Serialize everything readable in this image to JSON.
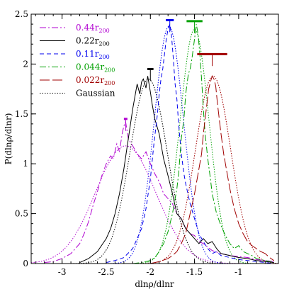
{
  "chart_data": {
    "type": "line",
    "xlabel": "dlnρ/dlnr",
    "ylabel": "P(dlnρ/dlnr)",
    "xlim": [
      -3.35,
      -0.55
    ],
    "ylim": [
      0,
      2.5
    ],
    "xticks": [
      -3,
      -2.5,
      -2,
      -1.5,
      -1
    ],
    "xtick_labels": [
      "-3",
      "-2.5",
      "-2",
      "-1.5",
      "-1"
    ],
    "yticks": [
      0,
      0.5,
      1,
      1.5,
      2,
      2.5
    ],
    "ytick_labels": [
      "0",
      "0.5",
      "1",
      "1.5",
      "2",
      "2.5"
    ],
    "grid": false,
    "legend_position": "top-left",
    "series": [
      {
        "name": "0.44r200",
        "name_main": "0.44r",
        "name_sub": "200",
        "color": "#b000d0",
        "dash": "9,3,2,3",
        "marker": {
          "x": -2.28,
          "y": 1.45,
          "halfwidth": 0.02
        },
        "x": [
          -3.2,
          -3.1,
          -3.0,
          -2.9,
          -2.8,
          -2.75,
          -2.7,
          -2.65,
          -2.6,
          -2.55,
          -2.5,
          -2.45,
          -2.42,
          -2.38,
          -2.35,
          -2.32,
          -2.3,
          -2.28,
          -2.25,
          -2.2,
          -2.15,
          -2.1,
          -2.05,
          -2.0,
          -1.95,
          -1.9,
          -1.85,
          -1.8,
          -1.75,
          -1.7,
          -1.65,
          -1.6,
          -1.55,
          -1.5,
          -1.45,
          -1.4,
          -1.3,
          -1.2,
          -1.1,
          -1.0,
          -0.9,
          -0.8,
          -0.7,
          -0.6
        ],
        "y": [
          0.01,
          0.02,
          0.05,
          0.1,
          0.2,
          0.3,
          0.42,
          0.58,
          0.72,
          0.88,
          1.0,
          1.08,
          1.05,
          1.2,
          1.12,
          1.3,
          1.38,
          1.42,
          1.25,
          1.18,
          1.1,
          1.05,
          1.12,
          1.0,
          0.9,
          0.82,
          0.7,
          0.65,
          0.6,
          0.5,
          0.45,
          0.35,
          0.3,
          0.28,
          0.22,
          0.2,
          0.13,
          0.1,
          0.08,
          0.07,
          0.06,
          0.04,
          0.03,
          0.02
        ]
      },
      {
        "name": "0.22r200",
        "name_main": "0.22r",
        "name_sub": "200",
        "color": "#000000",
        "dash": "",
        "marker": {
          "x": -2.0,
          "y": 1.95,
          "halfwidth": 0.035
        },
        "x": [
          -2.8,
          -2.7,
          -2.6,
          -2.5,
          -2.45,
          -2.4,
          -2.35,
          -2.3,
          -2.25,
          -2.2,
          -2.15,
          -2.12,
          -2.1,
          -2.08,
          -2.05,
          -2.03,
          -2.0,
          -1.98,
          -1.95,
          -1.9,
          -1.85,
          -1.8,
          -1.75,
          -1.7,
          -1.65,
          -1.6,
          -1.55,
          -1.5,
          -1.45,
          -1.4,
          -1.35,
          -1.3,
          -1.25,
          -1.2,
          -1.1,
          -1.0,
          -0.9,
          -0.8,
          -0.7,
          -0.6
        ],
        "y": [
          0.01,
          0.05,
          0.12,
          0.25,
          0.35,
          0.5,
          0.7,
          0.95,
          1.25,
          1.55,
          1.8,
          1.7,
          1.82,
          1.85,
          1.76,
          1.88,
          1.72,
          1.6,
          1.45,
          1.3,
          1.05,
          0.88,
          0.7,
          0.5,
          0.45,
          0.35,
          0.3,
          0.25,
          0.2,
          0.25,
          0.2,
          0.22,
          0.15,
          0.1,
          0.08,
          0.06,
          0.05,
          0.03,
          0.02,
          0.01
        ]
      },
      {
        "name": "0.11r200",
        "name_main": "0.11r",
        "name_sub": "200",
        "color": "#0000ee",
        "dash": "6,4",
        "marker": {
          "x": -1.78,
          "y": 2.44,
          "halfwidth": 0.045
        },
        "x": [
          -2.5,
          -2.4,
          -2.3,
          -2.2,
          -2.1,
          -2.05,
          -2.0,
          -1.96,
          -1.92,
          -1.9,
          -1.88,
          -1.86,
          -1.84,
          -1.82,
          -1.8,
          -1.78,
          -1.76,
          -1.74,
          -1.72,
          -1.7,
          -1.68,
          -1.65,
          -1.62,
          -1.6,
          -1.55,
          -1.5,
          -1.45,
          -1.4,
          -1.35,
          -1.3,
          -1.25,
          -1.2,
          -1.1,
          -1.0,
          -0.9,
          -0.8,
          -0.7,
          -0.6
        ],
        "y": [
          0.01,
          0.03,
          0.06,
          0.15,
          0.35,
          0.55,
          0.85,
          1.2,
          1.5,
          1.7,
          1.85,
          1.95,
          2.1,
          2.25,
          2.35,
          2.4,
          2.28,
          2.05,
          1.8,
          1.65,
          1.4,
          1.1,
          0.9,
          0.8,
          0.6,
          0.45,
          0.3,
          0.22,
          0.15,
          0.1,
          0.12,
          0.08,
          0.06,
          0.04,
          0.03,
          0.02,
          0.01,
          0.0
        ]
      },
      {
        "name": "0.044r200",
        "name_main": "0.044r",
        "name_sub": "200",
        "color": "#00a000",
        "dash": "9,3,2,3",
        "marker": {
          "x": -1.5,
          "y": 2.43,
          "halfwidth": 0.09
        },
        "x": [
          -2.2,
          -2.1,
          -2.0,
          -1.95,
          -1.9,
          -1.85,
          -1.8,
          -1.75,
          -1.7,
          -1.68,
          -1.65,
          -1.62,
          -1.6,
          -1.57,
          -1.55,
          -1.53,
          -1.5,
          -1.48,
          -1.46,
          -1.44,
          -1.42,
          -1.4,
          -1.38,
          -1.35,
          -1.32,
          -1.3,
          -1.25,
          -1.2,
          -1.15,
          -1.1,
          -1.05,
          -1.0,
          -0.95,
          -0.9,
          -0.85,
          -0.8,
          -0.75,
          -0.7,
          -0.65,
          -0.6
        ],
        "y": [
          0.0,
          0.01,
          0.03,
          0.06,
          0.12,
          0.2,
          0.32,
          0.5,
          0.75,
          0.9,
          1.25,
          1.45,
          1.7,
          1.9,
          1.95,
          2.05,
          2.25,
          2.4,
          2.3,
          2.1,
          1.85,
          1.55,
          1.3,
          1.05,
          0.85,
          0.7,
          0.5,
          0.38,
          0.28,
          0.2,
          0.15,
          0.18,
          0.12,
          0.1,
          0.08,
          0.05,
          0.04,
          0.03,
          0.02,
          0.01
        ]
      },
      {
        "name": "0.022r200",
        "name_main": "0.022r",
        "name_sub": "200",
        "color": "#a00000",
        "dash": "14,4",
        "marker": {
          "x": -1.3,
          "y": 2.1,
          "halfwidth": 0.17
        },
        "x": [
          -2.0,
          -1.9,
          -1.8,
          -1.75,
          -1.7,
          -1.65,
          -1.6,
          -1.55,
          -1.5,
          -1.45,
          -1.42,
          -1.4,
          -1.38,
          -1.36,
          -1.34,
          -1.32,
          -1.3,
          -1.28,
          -1.26,
          -1.24,
          -1.22,
          -1.2,
          -1.17,
          -1.15,
          -1.12,
          -1.1,
          -1.05,
          -1.0,
          -0.95,
          -0.9,
          -0.85,
          -0.8,
          -0.75,
          -0.7,
          -0.65,
          -0.6
        ],
        "y": [
          0.0,
          0.02,
          0.05,
          0.08,
          0.12,
          0.2,
          0.3,
          0.5,
          0.7,
          0.95,
          1.1,
          1.3,
          1.45,
          1.6,
          1.75,
          1.82,
          1.88,
          1.85,
          1.78,
          1.6,
          1.45,
          1.3,
          1.1,
          1.0,
          0.85,
          0.75,
          0.55,
          0.4,
          0.3,
          0.22,
          0.18,
          0.15,
          0.12,
          0.1,
          0.06,
          0.03
        ]
      },
      {
        "name": "Gaussian",
        "color": "#000000",
        "dash": "1.5,2",
        "legend_only": true
      }
    ],
    "gaussians": [
      {
        "color": "#b000d0",
        "mu": -2.28,
        "sigma": 0.34,
        "amp": 1.18
      },
      {
        "color": "#000000",
        "mu": -2.02,
        "sigma": 0.21,
        "amp": 1.85
      },
      {
        "color": "#0000ee",
        "mu": -1.79,
        "sigma": 0.165,
        "amp": 2.38
      },
      {
        "color": "#00a000",
        "mu": -1.5,
        "sigma": 0.165,
        "amp": 2.35
      },
      {
        "color": "#a00000",
        "mu": -1.29,
        "sigma": 0.2,
        "amp": 1.88
      }
    ]
  }
}
